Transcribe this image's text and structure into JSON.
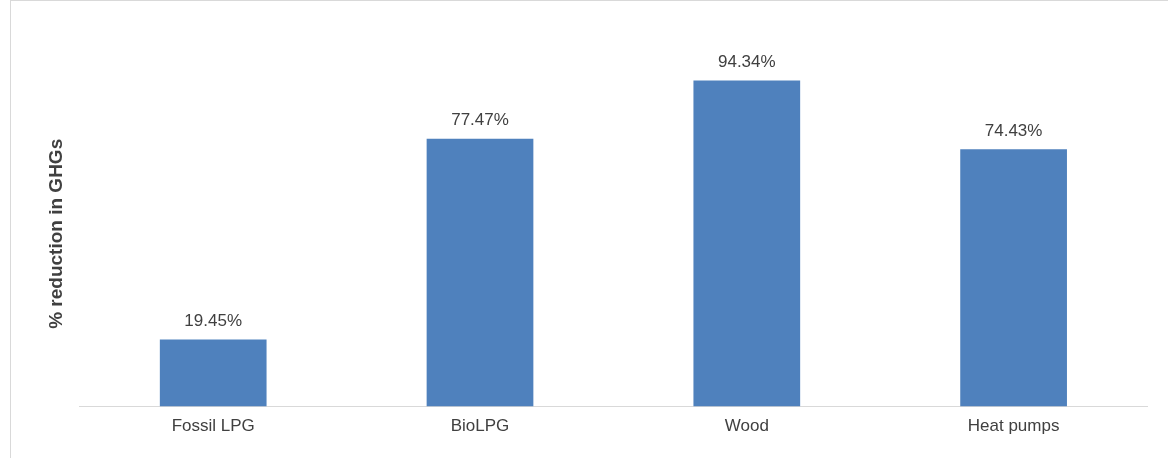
{
  "chart_data": {
    "type": "bar",
    "ylabel": "% reduction in GHGs",
    "categories": [
      "Fossil LPG",
      "BioLPG",
      "Wood",
      "Heat pumps"
    ],
    "values": [
      19.45,
      77.47,
      94.34,
      74.43
    ],
    "value_labels": [
      "19.45%",
      "77.47%",
      "94.34%",
      "74.43%"
    ],
    "color": "#4f81bd",
    "grid": false,
    "legend": false
  }
}
